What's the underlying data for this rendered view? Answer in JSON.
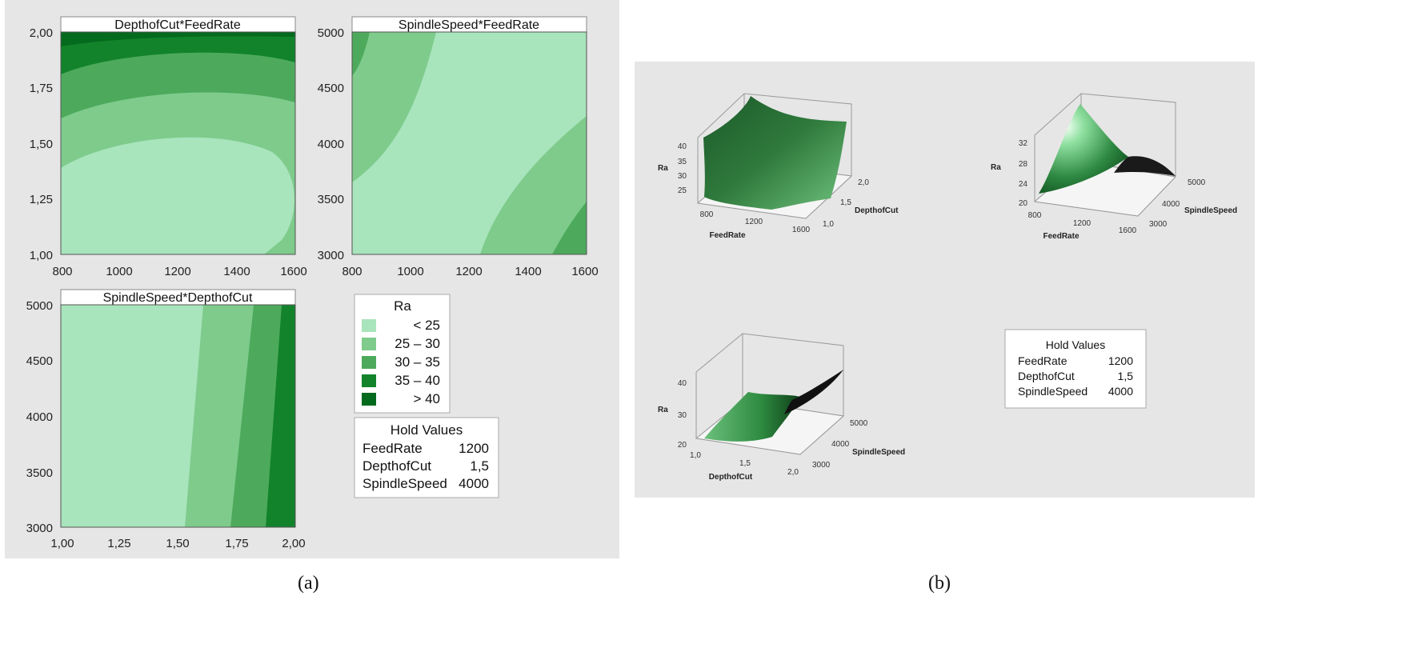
{
  "colors": {
    "lt25": "#a8e4bc",
    "c25_30": "#7ecb8c",
    "c30_35": "#4daa5c",
    "c35_40": "#12832a",
    "gt40": "#046a1e",
    "panel_bg": "#e6e6e6"
  },
  "panel_a": {
    "caption": "(a)",
    "legend": {
      "title": "Ra",
      "items": [
        {
          "label": "< 25",
          "color_key": "lt25"
        },
        {
          "label": "25 – 30",
          "color_key": "c25_30"
        },
        {
          "label": "30 – 35",
          "color_key": "c30_35"
        },
        {
          "label": "35 – 40",
          "color_key": "c35_40"
        },
        {
          "label": "> 40",
          "color_key": "gt40"
        }
      ]
    },
    "hold": {
      "title": "Hold Values",
      "rows": [
        {
          "name": "FeedRate",
          "value": "1200"
        },
        {
          "name": "DepthofCut",
          "value": "1,5"
        },
        {
          "name": "SpindleSpeed",
          "value": "4000"
        }
      ]
    }
  },
  "panel_b": {
    "caption": "(b)",
    "hold": {
      "title": "Hold Values",
      "rows": [
        {
          "name": "FeedRate",
          "value": "1200"
        },
        {
          "name": "DepthofCut",
          "value": "1,5"
        },
        {
          "name": "SpindleSpeed",
          "value": "4000"
        }
      ]
    },
    "surfaces": [
      {
        "z_label": "Ra",
        "z_ticks": [
          "25",
          "30",
          "35",
          "40"
        ],
        "x_label": "FeedRate",
        "x_ticks": [
          "800",
          "1200",
          "1600"
        ],
        "y_label": "DepthofCut",
        "y_ticks": [
          "1,0",
          "1,5",
          "2,0"
        ]
      },
      {
        "z_label": "Ra",
        "z_ticks": [
          "20",
          "24",
          "28",
          "32"
        ],
        "x_label": "FeedRate",
        "x_ticks": [
          "800",
          "1200",
          "1600"
        ],
        "y_label": "SpindleSpeed",
        "y_ticks": [
          "3000",
          "4000",
          "5000"
        ]
      },
      {
        "z_label": "Ra",
        "z_ticks": [
          "20",
          "30",
          "40"
        ],
        "x_label": "DepthofCut",
        "x_ticks": [
          "1,0",
          "1,5",
          "2,0"
        ],
        "y_label": "SpindleSpeed",
        "y_ticks": [
          "3000",
          "4000",
          "5000"
        ]
      }
    ]
  },
  "chart_data": [
    {
      "type": "contour",
      "title": "DepthofCut*FeedRate",
      "x_ticks": [
        "800",
        "1000",
        "1200",
        "1400",
        "1600"
      ],
      "y_ticks": [
        "1,00",
        "1,25",
        "1,50",
        "1,75",
        "2,00"
      ],
      "xlim": [
        800,
        1600
      ],
      "ylim": [
        1.0,
        2.0
      ],
      "levels": [
        "< 25",
        "25 – 30",
        "30 – 35",
        "35 – 40",
        "> 40"
      ]
    },
    {
      "type": "contour",
      "title": "SpindleSpeed*FeedRate",
      "x_ticks": [
        "800",
        "1000",
        "1200",
        "1400",
        "1600"
      ],
      "y_ticks": [
        "3000",
        "3500",
        "4000",
        "4500",
        "5000"
      ],
      "xlim": [
        800,
        1600
      ],
      "ylim": [
        3000,
        5000
      ],
      "levels": [
        "< 25",
        "25 – 30",
        "30 – 35"
      ]
    },
    {
      "type": "contour",
      "title": "SpindleSpeed*DepthofCut",
      "x_ticks": [
        "1,00",
        "1,25",
        "1,50",
        "1,75",
        "2,00"
      ],
      "y_ticks": [
        "3000",
        "3500",
        "4000",
        "4500",
        "5000"
      ],
      "xlim": [
        1.0,
        2.0
      ],
      "ylim": [
        3000,
        5000
      ],
      "levels": [
        "< 25",
        "25 – 30",
        "30 – 35",
        "35 – 40"
      ]
    }
  ]
}
